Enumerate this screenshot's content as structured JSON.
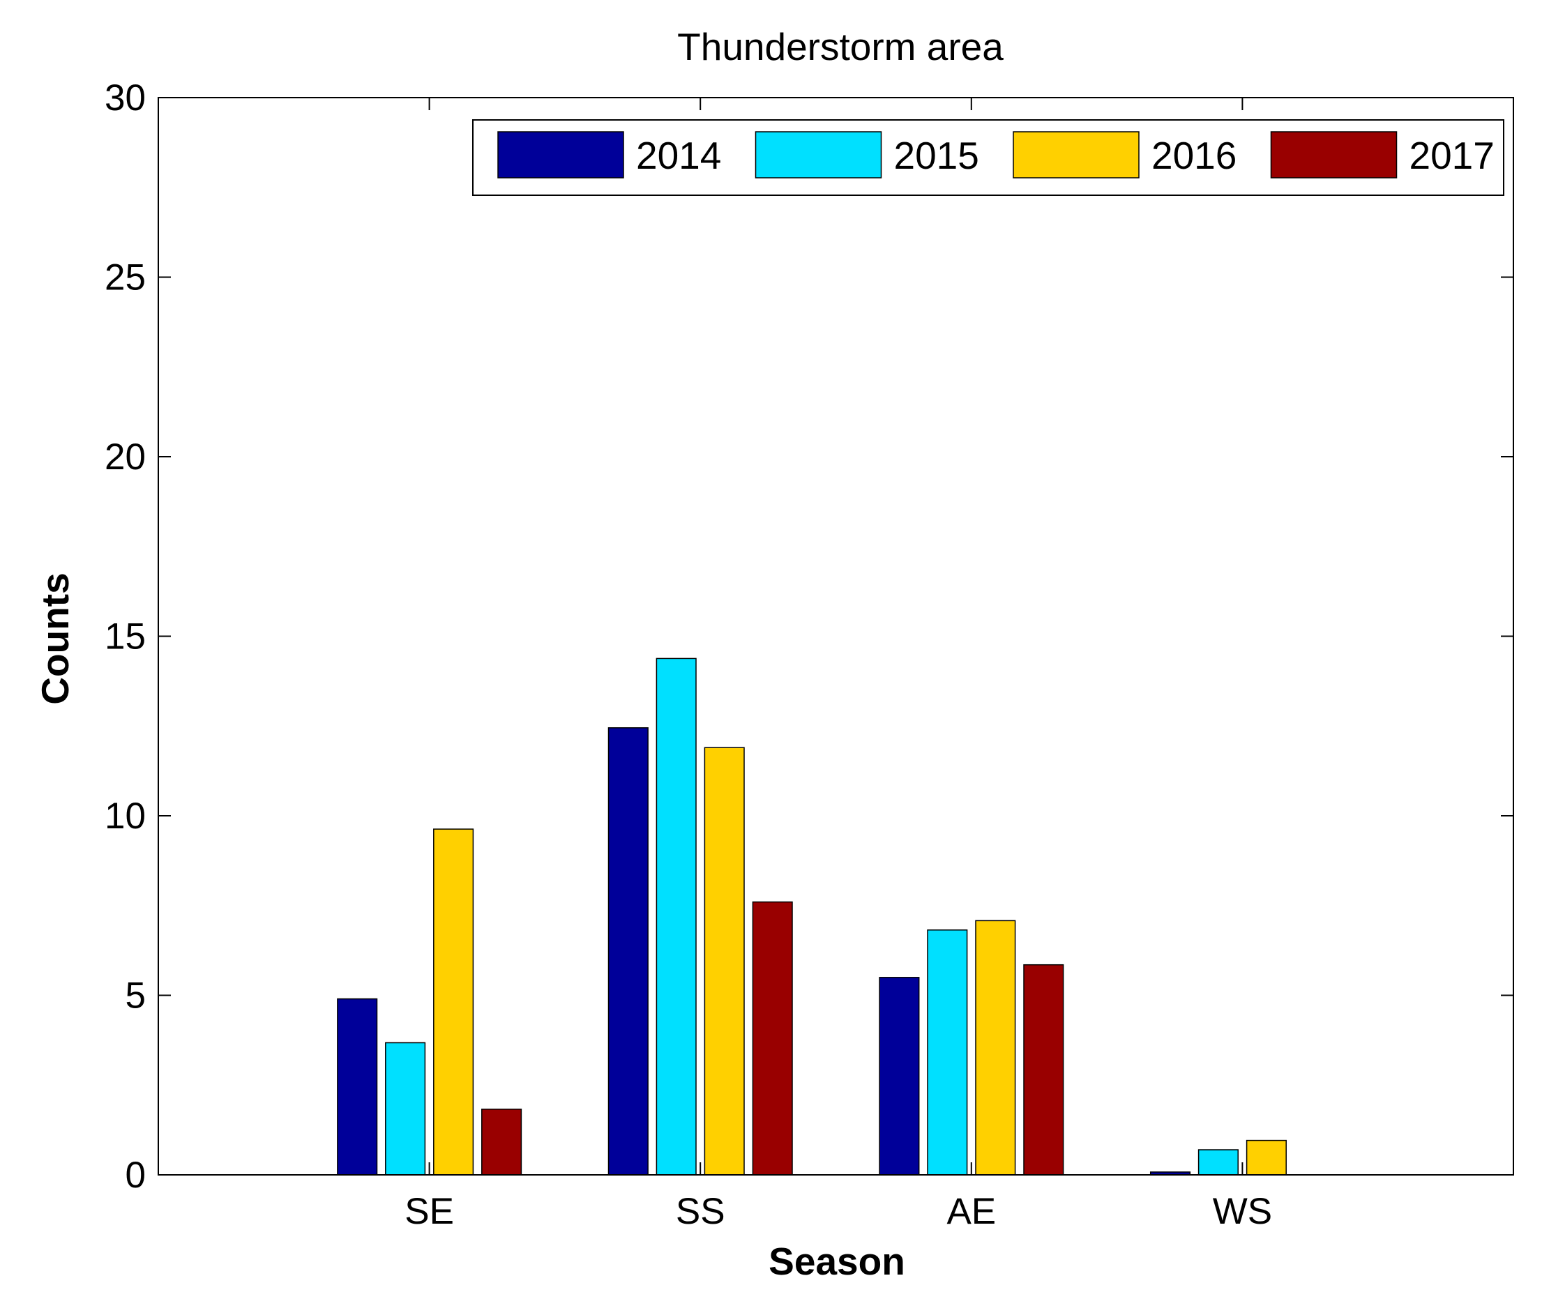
{
  "chart_data": {
    "type": "bar",
    "title": "Thunderstorm area",
    "xlabel": "Season",
    "ylabel": "Counts",
    "categories": [
      "SE",
      "SS",
      "AE",
      "WS"
    ],
    "series": [
      {
        "name": "2014",
        "color": "#000099",
        "values": [
          4.9,
          12.45,
          5.5,
          0.08
        ]
      },
      {
        "name": "2015",
        "color": "#00E0FF",
        "values": [
          3.68,
          14.38,
          6.82,
          0.7
        ]
      },
      {
        "name": "2016",
        "color": "#FFD000",
        "values": [
          9.63,
          11.9,
          7.08,
          0.96
        ]
      },
      {
        "name": "2017",
        "color": "#990000",
        "values": [
          1.83,
          7.6,
          5.85,
          0
        ]
      }
    ],
    "ylim": [
      0,
      30
    ],
    "yticks": [
      0,
      5,
      10,
      15,
      20,
      25,
      30
    ],
    "grid": false,
    "legend_position": "top-right"
  }
}
